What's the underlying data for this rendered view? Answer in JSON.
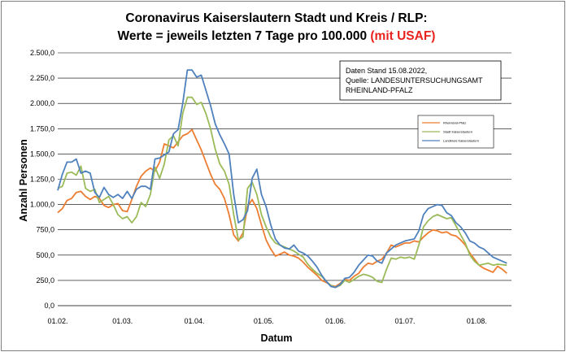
{
  "chart_data": {
    "type": "line",
    "title": "Coronavirus Kaiserslautern Stadt und Kreis / RLP:",
    "subtitle": "Werte = jeweils letzten 7 Tage pro 100.000",
    "subtitle_highlight": "(mit USAF)",
    "xlabel": "Datum",
    "ylabel": "Anzahl Personen",
    "ylim": [
      0,
      2500
    ],
    "y_ticks": [
      0,
      250,
      500,
      750,
      1000,
      1250,
      1500,
      1750,
      2000,
      2250,
      2500
    ],
    "y_tick_labels": [
      "0,0",
      "250,0",
      "500,0",
      "750,0",
      "1.000,0",
      "1.250,0",
      "1.500,0",
      "1.750,0",
      "2.000,0",
      "2.250,0",
      "2.500,0"
    ],
    "x_tick_labels": [
      "01.02.",
      "01.03.",
      "01.04.",
      "01.05.",
      "01.06.",
      "01.07.",
      "01.08."
    ],
    "x_tick_days": [
      0,
      28,
      59,
      89,
      120,
      150,
      181
    ],
    "x_range_days": [
      0,
      196
    ],
    "grid": "horizontal",
    "legend_position": "right",
    "annotation_lines": [
      "Daten Stand 15.08.2022,",
      "Quelle: LANDESUNTERSUCHUNGSAMT",
      "RHEINLAND-PFALZ"
    ],
    "series": [
      {
        "name": "Rheinland-Pfalz",
        "color": "#ed7d31",
        "points": [
          [
            0,
            920
          ],
          [
            2,
            960
          ],
          [
            4,
            1040
          ],
          [
            6,
            1060
          ],
          [
            8,
            1120
          ],
          [
            10,
            1130
          ],
          [
            12,
            1080
          ],
          [
            14,
            1050
          ],
          [
            16,
            1080
          ],
          [
            18,
            1060
          ],
          [
            20,
            990
          ],
          [
            22,
            970
          ],
          [
            24,
            1000
          ],
          [
            26,
            1010
          ],
          [
            28,
            940
          ],
          [
            30,
            930
          ],
          [
            32,
            1050
          ],
          [
            34,
            1180
          ],
          [
            36,
            1280
          ],
          [
            38,
            1330
          ],
          [
            40,
            1360
          ],
          [
            42,
            1330
          ],
          [
            44,
            1420
          ],
          [
            46,
            1600
          ],
          [
            48,
            1580
          ],
          [
            50,
            1560
          ],
          [
            52,
            1620
          ],
          [
            54,
            1680
          ],
          [
            56,
            1700
          ],
          [
            58,
            1740
          ],
          [
            60,
            1640
          ],
          [
            62,
            1540
          ],
          [
            64,
            1420
          ],
          [
            66,
            1300
          ],
          [
            68,
            1200
          ],
          [
            70,
            1150
          ],
          [
            72,
            1060
          ],
          [
            74,
            900
          ],
          [
            76,
            700
          ],
          [
            78,
            640
          ],
          [
            80,
            720
          ],
          [
            82,
            980
          ],
          [
            84,
            1050
          ],
          [
            86,
            960
          ],
          [
            88,
            800
          ],
          [
            90,
            650
          ],
          [
            92,
            560
          ],
          [
            94,
            490
          ],
          [
            96,
            510
          ],
          [
            98,
            530
          ],
          [
            100,
            500
          ],
          [
            102,
            490
          ],
          [
            104,
            470
          ],
          [
            106,
            430
          ],
          [
            108,
            380
          ],
          [
            110,
            340
          ],
          [
            112,
            300
          ],
          [
            114,
            250
          ],
          [
            116,
            230
          ],
          [
            118,
            200
          ],
          [
            120,
            190
          ],
          [
            122,
            220
          ],
          [
            124,
            260
          ],
          [
            126,
            250
          ],
          [
            128,
            290
          ],
          [
            130,
            320
          ],
          [
            132,
            380
          ],
          [
            134,
            420
          ],
          [
            136,
            410
          ],
          [
            138,
            440
          ],
          [
            140,
            460
          ],
          [
            142,
            520
          ],
          [
            144,
            600
          ],
          [
            146,
            580
          ],
          [
            148,
            600
          ],
          [
            150,
            620
          ],
          [
            152,
            620
          ],
          [
            154,
            640
          ],
          [
            156,
            630
          ],
          [
            158,
            680
          ],
          [
            160,
            720
          ],
          [
            162,
            750
          ],
          [
            164,
            740
          ],
          [
            166,
            720
          ],
          [
            168,
            730
          ],
          [
            170,
            700
          ],
          [
            172,
            690
          ],
          [
            174,
            650
          ],
          [
            176,
            600
          ],
          [
            178,
            520
          ],
          [
            180,
            460
          ],
          [
            182,
            400
          ],
          [
            184,
            370
          ],
          [
            186,
            350
          ],
          [
            188,
            330
          ],
          [
            190,
            390
          ],
          [
            192,
            360
          ],
          [
            194,
            320
          ]
        ]
      },
      {
        "name": "Stadt Kaiserslautern",
        "color": "#9bbb59",
        "points": [
          [
            0,
            1160
          ],
          [
            2,
            1180
          ],
          [
            4,
            1310
          ],
          [
            6,
            1320
          ],
          [
            8,
            1290
          ],
          [
            10,
            1380
          ],
          [
            12,
            1160
          ],
          [
            14,
            1130
          ],
          [
            16,
            1150
          ],
          [
            18,
            1020
          ],
          [
            20,
            1050
          ],
          [
            22,
            1080
          ],
          [
            24,
            1000
          ],
          [
            26,
            900
          ],
          [
            28,
            860
          ],
          [
            30,
            880
          ],
          [
            32,
            820
          ],
          [
            34,
            880
          ],
          [
            36,
            1020
          ],
          [
            38,
            980
          ],
          [
            40,
            1100
          ],
          [
            42,
            1370
          ],
          [
            44,
            1260
          ],
          [
            46,
            1400
          ],
          [
            48,
            1640
          ],
          [
            50,
            1680
          ],
          [
            52,
            1580
          ],
          [
            54,
            1900
          ],
          [
            56,
            2060
          ],
          [
            58,
            2060
          ],
          [
            60,
            1990
          ],
          [
            62,
            2010
          ],
          [
            64,
            1900
          ],
          [
            66,
            1750
          ],
          [
            68,
            1550
          ],
          [
            70,
            1400
          ],
          [
            72,
            1330
          ],
          [
            74,
            1200
          ],
          [
            76,
            900
          ],
          [
            78,
            650
          ],
          [
            80,
            680
          ],
          [
            82,
            1160
          ],
          [
            84,
            1220
          ],
          [
            86,
            1100
          ],
          [
            88,
            900
          ],
          [
            90,
            780
          ],
          [
            92,
            680
          ],
          [
            94,
            620
          ],
          [
            96,
            600
          ],
          [
            98,
            580
          ],
          [
            100,
            560
          ],
          [
            102,
            540
          ],
          [
            104,
            510
          ],
          [
            106,
            480
          ],
          [
            108,
            410
          ],
          [
            110,
            360
          ],
          [
            112,
            320
          ],
          [
            114,
            290
          ],
          [
            116,
            240
          ],
          [
            118,
            200
          ],
          [
            120,
            180
          ],
          [
            122,
            200
          ],
          [
            124,
            250
          ],
          [
            126,
            230
          ],
          [
            128,
            260
          ],
          [
            130,
            290
          ],
          [
            132,
            310
          ],
          [
            134,
            300
          ],
          [
            136,
            280
          ],
          [
            138,
            240
          ],
          [
            140,
            230
          ],
          [
            142,
            360
          ],
          [
            144,
            470
          ],
          [
            146,
            460
          ],
          [
            148,
            480
          ],
          [
            150,
            470
          ],
          [
            152,
            480
          ],
          [
            154,
            460
          ],
          [
            156,
            600
          ],
          [
            158,
            780
          ],
          [
            160,
            840
          ],
          [
            162,
            880
          ],
          [
            164,
            900
          ],
          [
            166,
            880
          ],
          [
            168,
            860
          ],
          [
            170,
            870
          ],
          [
            172,
            790
          ],
          [
            174,
            700
          ],
          [
            176,
            620
          ],
          [
            178,
            500
          ],
          [
            180,
            440
          ],
          [
            182,
            400
          ],
          [
            184,
            410
          ],
          [
            186,
            420
          ],
          [
            188,
            400
          ],
          [
            190,
            410
          ],
          [
            192,
            405
          ],
          [
            194,
            400
          ]
        ]
      },
      {
        "name": "Landkreis Kaiserslautern",
        "color": "#4f81bd",
        "points": [
          [
            0,
            1140
          ],
          [
            2,
            1300
          ],
          [
            4,
            1420
          ],
          [
            6,
            1420
          ],
          [
            8,
            1450
          ],
          [
            10,
            1310
          ],
          [
            12,
            1330
          ],
          [
            14,
            1310
          ],
          [
            16,
            1120
          ],
          [
            18,
            1070
          ],
          [
            20,
            1170
          ],
          [
            22,
            1100
          ],
          [
            24,
            1070
          ],
          [
            26,
            1100
          ],
          [
            28,
            1060
          ],
          [
            30,
            1130
          ],
          [
            32,
            1060
          ],
          [
            34,
            1150
          ],
          [
            36,
            1180
          ],
          [
            38,
            1180
          ],
          [
            40,
            1150
          ],
          [
            42,
            1450
          ],
          [
            44,
            1460
          ],
          [
            46,
            1490
          ],
          [
            48,
            1520
          ],
          [
            50,
            1700
          ],
          [
            52,
            1740
          ],
          [
            54,
            2000
          ],
          [
            56,
            2330
          ],
          [
            58,
            2330
          ],
          [
            60,
            2260
          ],
          [
            62,
            2280
          ],
          [
            64,
            2130
          ],
          [
            66,
            1980
          ],
          [
            68,
            1800
          ],
          [
            70,
            1690
          ],
          [
            72,
            1600
          ],
          [
            74,
            1500
          ],
          [
            76,
            1100
          ],
          [
            78,
            820
          ],
          [
            80,
            850
          ],
          [
            82,
            940
          ],
          [
            84,
            1260
          ],
          [
            86,
            1350
          ],
          [
            88,
            1100
          ],
          [
            90,
            980
          ],
          [
            92,
            800
          ],
          [
            94,
            660
          ],
          [
            96,
            600
          ],
          [
            98,
            570
          ],
          [
            100,
            560
          ],
          [
            102,
            600
          ],
          [
            104,
            540
          ],
          [
            106,
            520
          ],
          [
            108,
            490
          ],
          [
            110,
            440
          ],
          [
            112,
            380
          ],
          [
            114,
            300
          ],
          [
            116,
            240
          ],
          [
            118,
            190
          ],
          [
            120,
            180
          ],
          [
            122,
            210
          ],
          [
            124,
            270
          ],
          [
            126,
            280
          ],
          [
            128,
            330
          ],
          [
            130,
            400
          ],
          [
            132,
            450
          ],
          [
            134,
            500
          ],
          [
            136,
            490
          ],
          [
            138,
            440
          ],
          [
            140,
            420
          ],
          [
            142,
            520
          ],
          [
            144,
            560
          ],
          [
            146,
            600
          ],
          [
            148,
            620
          ],
          [
            150,
            640
          ],
          [
            152,
            650
          ],
          [
            154,
            660
          ],
          [
            156,
            740
          ],
          [
            158,
            900
          ],
          [
            160,
            960
          ],
          [
            162,
            980
          ],
          [
            164,
            1000
          ],
          [
            166,
            990
          ],
          [
            168,
            920
          ],
          [
            170,
            890
          ],
          [
            172,
            820
          ],
          [
            174,
            780
          ],
          [
            176,
            720
          ],
          [
            178,
            640
          ],
          [
            180,
            620
          ],
          [
            182,
            580
          ],
          [
            184,
            560
          ],
          [
            186,
            520
          ],
          [
            188,
            480
          ],
          [
            190,
            460
          ],
          [
            192,
            440
          ],
          [
            194,
            420
          ]
        ]
      }
    ]
  }
}
